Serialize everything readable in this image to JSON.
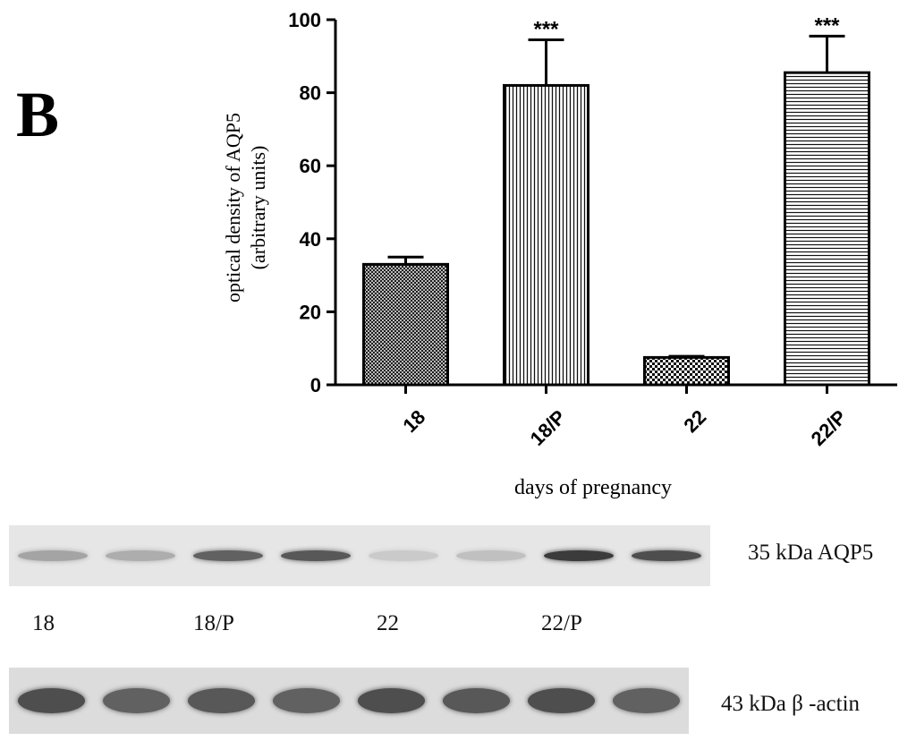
{
  "panel_letter": "B",
  "chart_data": {
    "type": "bar",
    "categories": [
      "18",
      "18/P",
      "22",
      "22/P"
    ],
    "values": [
      33,
      82,
      7.5,
      85.5
    ],
    "errors": [
      2,
      12.5,
      0.3,
      10
    ],
    "significance": [
      "",
      "***",
      "",
      "***"
    ],
    "patterns": [
      "crosshatch-fine",
      "vertical-lines",
      "checker",
      "horizontal-lines"
    ],
    "ylabel_line1": "optical density of AQP5",
    "ylabel_line2": "(arbitrary units)",
    "xlabel": "days of pregnancy",
    "ylim": [
      0,
      100
    ],
    "yticks": [
      "0",
      "20",
      "40",
      "60",
      "80",
      "100"
    ],
    "grid": false
  },
  "blots": {
    "aqp5_label": "35 kDa AQP5",
    "actin_label": "43 kDa β -actin",
    "lane_labels": [
      "18",
      "18/P",
      "22",
      "22/P"
    ],
    "aqp5_band_intensity": [
      0.35,
      0.3,
      0.7,
      0.75,
      0.15,
      0.2,
      0.9,
      0.8
    ],
    "actin_band_intensity": [
      0.8,
      0.7,
      0.75,
      0.7,
      0.8,
      0.75,
      0.8,
      0.7
    ]
  }
}
